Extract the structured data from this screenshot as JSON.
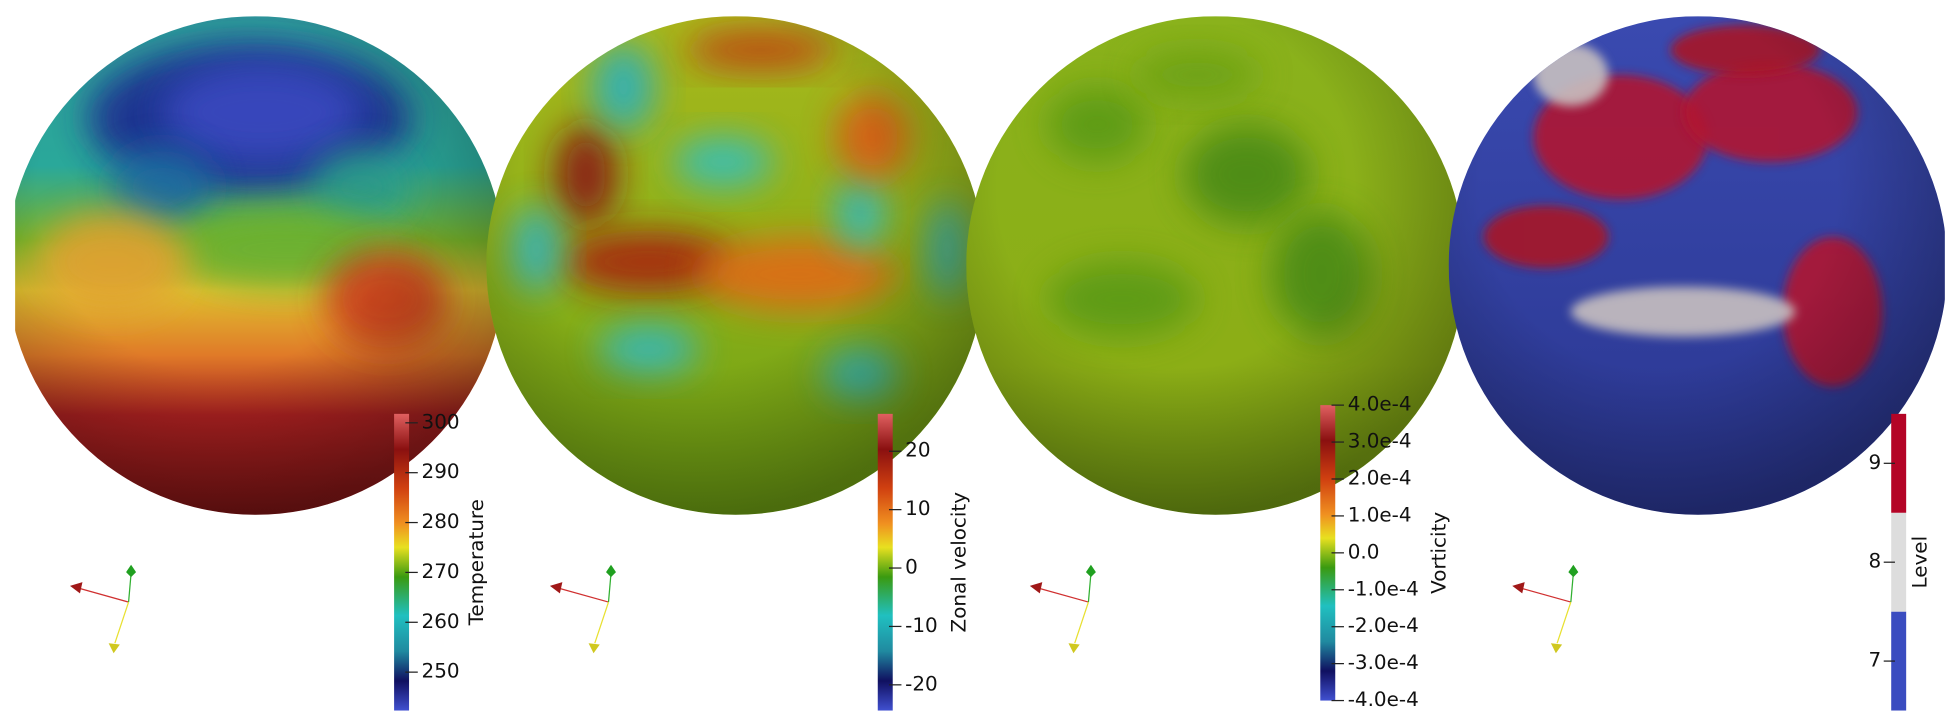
{
  "panels": [
    {
      "colorbar": {
        "title": "Temperature",
        "range": [
          242.3,
          301.8
        ],
        "ticks": [
          250,
          260,
          270,
          280,
          290,
          300
        ]
      }
    },
    {
      "colorbar": {
        "title": "Zonal velocity",
        "range": [
          -24.4,
          26.4
        ],
        "ticks": [
          -20,
          -10,
          0,
          10,
          20
        ]
      }
    },
    {
      "colorbar": {
        "title": "Vorticity",
        "range": [
          -0.0004,
          0.0004
        ],
        "ticks": [
          {
            "value": -0.0004,
            "label": "-4.0e-4"
          },
          {
            "value": -0.0003,
            "label": "-3.0e-4"
          },
          {
            "value": -0.0002,
            "label": "-2.0e-4"
          },
          {
            "value": -0.0001,
            "label": "-1.0e-4"
          },
          {
            "value": 0,
            "label": "0.0"
          },
          {
            "value": 0.0001,
            "label": "1.0e-4"
          },
          {
            "value": 0.0002,
            "label": "2.0e-4"
          },
          {
            "value": 0.0003,
            "label": "3.0e-4"
          },
          {
            "value": 0.0004,
            "label": "4.0e-4"
          }
        ]
      }
    },
    {
      "colorbar": {
        "title": "Level",
        "range": [
          6.5,
          9.5
        ],
        "ticks": [
          7,
          8,
          9
        ]
      }
    }
  ]
}
